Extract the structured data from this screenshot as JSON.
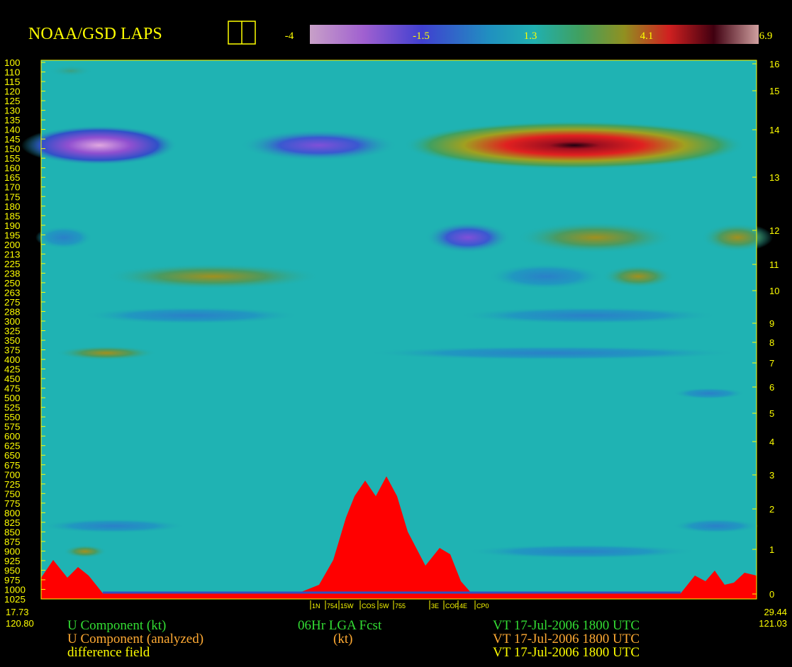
{
  "header": {
    "title": "NOAA/GSD LAPS",
    "colorbar_labels": [
      "-4",
      "-1.5",
      "1.3",
      "4.1",
      "6.9"
    ]
  },
  "left_axis": [
    100,
    110,
    115,
    120,
    125,
    130,
    135,
    140,
    145,
    150,
    155,
    160,
    165,
    170,
    175,
    180,
    185,
    190,
    195,
    200,
    213,
    225,
    238,
    250,
    263,
    275,
    288,
    300,
    325,
    350,
    375,
    400,
    425,
    450,
    475,
    500,
    525,
    550,
    575,
    600,
    625,
    650,
    675,
    700,
    725,
    750,
    775,
    800,
    825,
    850,
    875,
    900,
    925,
    950,
    975,
    1000,
    1025
  ],
  "right_axis": [
    16,
    15,
    14,
    13,
    12,
    11,
    10,
    9,
    8,
    7,
    6,
    5,
    4,
    3,
    2,
    1,
    0
  ],
  "stations": [
    "1N",
    "754",
    "15W",
    "COS",
    "5W",
    "755",
    "3E",
    "COF",
    "4E",
    "CP0"
  ],
  "corners": {
    "left": [
      "17.73",
      "120.80"
    ],
    "right": [
      "29.44",
      "121.03"
    ]
  },
  "legend": {
    "forecast": {
      "field": "U Component (kt)",
      "source": "06Hr LGA Fcst",
      "time": "VT 17-Jul-2006 1800 UTC"
    },
    "analysis": {
      "field": "U Component (analyzed)",
      "units": "(kt)",
      "time": "VT 17-Jul-2006 1800 UTC"
    },
    "difference": {
      "field": "difference field",
      "time": "VT 17-Jul-2006 1800 UTC"
    }
  }
}
